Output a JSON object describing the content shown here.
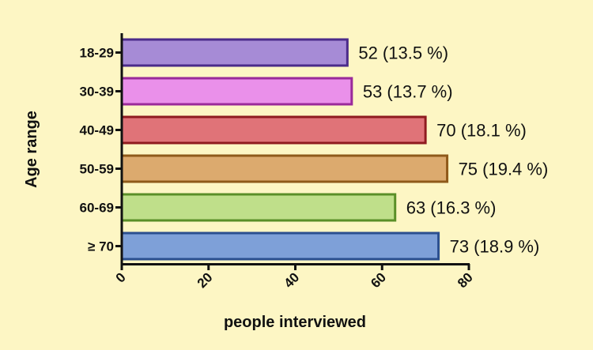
{
  "chart_data": {
    "type": "bar",
    "orientation": "horizontal",
    "xlabel": "people interviewed",
    "ylabel": "Age range",
    "xlim": [
      0,
      80
    ],
    "xticks": [
      "0",
      "20",
      "40",
      "60",
      "80"
    ],
    "categories": [
      "18-29",
      "30-39",
      "40-49",
      "50-59",
      "60-69",
      "≥ 70"
    ],
    "values": [
      52,
      53,
      70,
      75,
      63,
      73
    ],
    "data_labels": [
      "52 (13.5 %)",
      "53 (13.7 %)",
      "70 (18.1 %)",
      "75 (19.4 %)",
      "63 (16.3 %)",
      "73 (18.9 %)"
    ],
    "fill_colors": [
      "#a68bd6",
      "#ea90ea",
      "#e07378",
      "#dcaa6e",
      "#bfdf8a",
      "#7ea0d8"
    ],
    "border_colors": [
      "#4b2b8a",
      "#9a2a9a",
      "#8f1b1f",
      "#8f5a1a",
      "#5a8f28",
      "#2b4f8f"
    ],
    "grid": false,
    "background": "#fdf6c4"
  }
}
